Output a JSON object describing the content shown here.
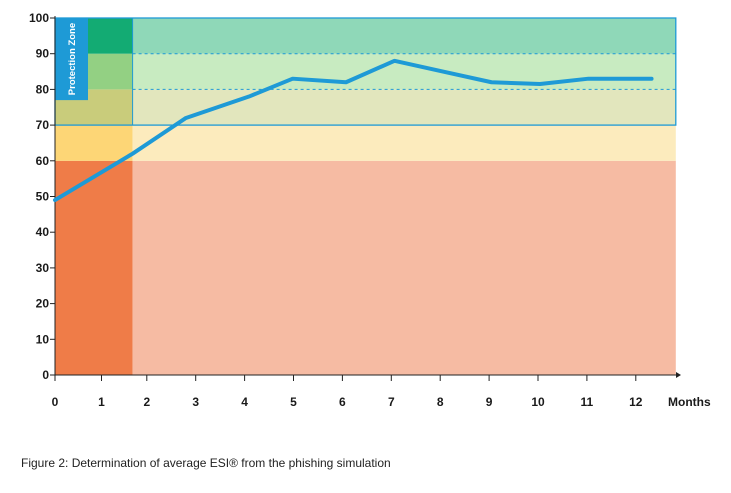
{
  "chart_data": {
    "type": "line",
    "title": "",
    "xlabel": "Months",
    "ylabel": "",
    "xlim": [
      0,
      12.8
    ],
    "ylim": [
      0,
      100
    ],
    "x_ticks": [
      0,
      1,
      2,
      3,
      4,
      5,
      6,
      7,
      8,
      9,
      10,
      11,
      12
    ],
    "y_ticks": [
      0,
      10,
      20,
      30,
      40,
      50,
      60,
      70,
      80,
      90,
      100
    ],
    "series": [
      {
        "name": "Average ESI",
        "color": "#1e9ad6",
        "x": [
          0,
          1.6,
          2.7,
          4,
          4.9,
          6,
          7,
          8,
          9,
          10,
          11,
          12.3
        ],
        "y": [
          49,
          62,
          72,
          78,
          83,
          82,
          88,
          85,
          82,
          81.5,
          83,
          83
        ]
      }
    ],
    "zones": {
      "danger": {
        "y_from": 0,
        "y_to": 60,
        "color_dark": "#ef7c48",
        "color_light": "#f6bba3"
      },
      "warning": {
        "y_from": 60,
        "y_to": 70,
        "color_dark": "#fdd676",
        "color_light": "#fcebbd"
      },
      "protection": [
        {
          "y_from": 70,
          "y_to": 80,
          "color_dark": "#c9cc7b",
          "color_light": "#e2e6bd"
        },
        {
          "y_from": 80,
          "y_to": 90,
          "color_dark": "#93d083",
          "color_light": "#c8ebc1"
        },
        {
          "y_from": 90,
          "y_to": 100,
          "color_dark": "#13ab73",
          "color_light": "#8fd8b8"
        }
      ],
      "dark_column_x_to": 1.6,
      "protection_border_color": "#1e9ad6",
      "dashed_lines_y": [
        80,
        90
      ],
      "protection_label": "Protection Zone",
      "protection_label_bg": "#1e9ad6",
      "protection_label_range": [
        77,
        100
      ]
    },
    "caption": "Figure 2: Determination of average ESI® from the phishing simulation"
  }
}
